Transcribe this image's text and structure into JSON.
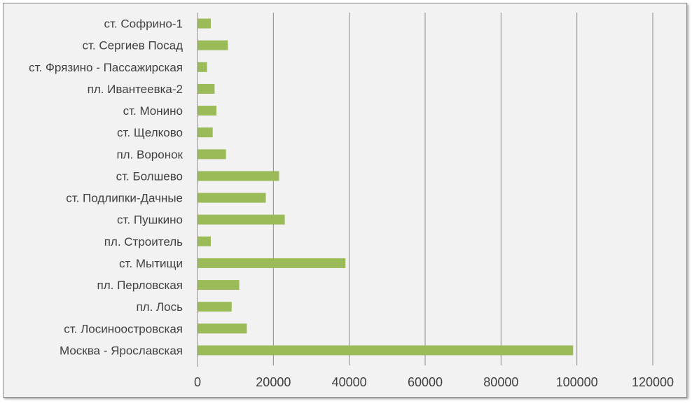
{
  "chart_data": {
    "type": "bar",
    "orientation": "horizontal",
    "categories": [
      "ст. Софрино-1",
      "ст. Сергиев Посад",
      "ст. Фрязино - Пассажирская",
      "пл. Ивантеевка-2",
      "ст. Монино",
      "ст. Щелково",
      "пл. Воронок",
      "ст. Болшево",
      "ст. Подлипки-Дачные",
      "ст. Пушкино",
      "пл. Строитель",
      "ст. Мытищи",
      "пл. Перловская",
      "пл. Лось",
      "ст. Лосиноостровская",
      "Москва - Ярославская"
    ],
    "values": [
      3500,
      8000,
      2500,
      4500,
      5000,
      4000,
      7500,
      21500,
      18000,
      23000,
      3500,
      39000,
      11000,
      9000,
      13000,
      99000
    ],
    "xlim": [
      0,
      120000
    ],
    "xticks": [
      "0",
      "20000",
      "40000",
      "60000",
      "80000",
      "100000",
      "120000"
    ],
    "title": "",
    "xlabel": "",
    "ylabel": "",
    "grid": "vertical",
    "legend": "none",
    "bar_color": "#9bbb59",
    "background_color": "#f2f2f2",
    "gridline_color": "#8c8c8c"
  }
}
